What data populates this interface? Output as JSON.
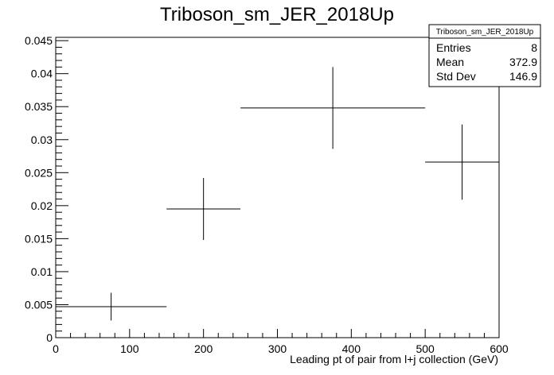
{
  "chart_data": {
    "type": "scatter",
    "title": "Triboson_sm_JER_2018Up",
    "xlabel": "Leading pt of pair from l+j collection (GeV)",
    "ylabel": "",
    "xlim": [
      0,
      600
    ],
    "ylim": [
      0,
      0.0455
    ],
    "x_ticks": [
      0,
      100,
      200,
      300,
      400,
      500,
      600
    ],
    "x_tick_labels": [
      "0",
      "100",
      "200",
      "300",
      "400",
      "500",
      "600"
    ],
    "y_ticks": [
      0,
      0.005,
      0.01,
      0.015,
      0.02,
      0.025,
      0.03,
      0.035,
      0.04,
      0.045
    ],
    "y_tick_labels": [
      "0",
      "0.005",
      "0.01",
      "0.015",
      "0.02",
      "0.025",
      "0.03",
      "0.035",
      "0.04",
      "0.045"
    ],
    "grid": false,
    "points": [
      {
        "x_low": 0,
        "x_high": 150,
        "x": 75,
        "y": 0.0047,
        "y_err": 0.0021
      },
      {
        "x_low": 150,
        "x_high": 250,
        "x": 200,
        "y": 0.0195,
        "y_err": 0.0047
      },
      {
        "x_low": 250,
        "x_high": 500,
        "x": 375,
        "y": 0.0348,
        "y_err": 0.0062
      },
      {
        "x_low": 500,
        "x_high": 600,
        "x": 550,
        "y": 0.0266,
        "y_err": 0.0057
      }
    ],
    "stats_box": {
      "title": "Triboson_sm_JER_2018Up",
      "rows": [
        {
          "label": "Entries",
          "value": "8"
        },
        {
          "label": "Mean",
          "value": "372.9"
        },
        {
          "label": "Std Dev",
          "value": "146.9"
        }
      ]
    }
  }
}
